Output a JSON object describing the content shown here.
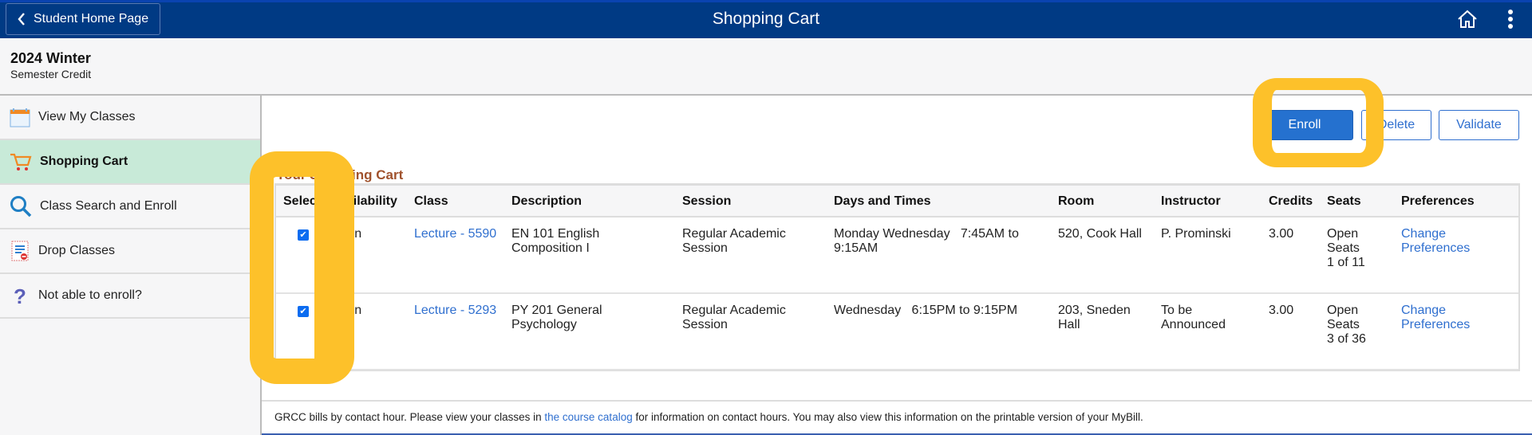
{
  "header": {
    "back_label": "Student Home Page",
    "title": "Shopping Cart",
    "icons": [
      "chevron-left-icon",
      "home-icon",
      "more-vertical-icon"
    ],
    "color": "#003a84"
  },
  "term": {
    "name": "2024 Winter",
    "career": "Semester Credit"
  },
  "sidebar": {
    "items": [
      {
        "label": "View My Classes",
        "icon": "calendar-icon"
      },
      {
        "label": "Shopping Cart",
        "icon": "cart-icon",
        "active": true
      },
      {
        "label": "Class Search and Enroll",
        "icon": "search-icon"
      },
      {
        "label": "Drop Classes",
        "icon": "drop-classes-icon"
      },
      {
        "label": "Not able to enroll?",
        "icon": "question-icon"
      }
    ],
    "active_color": "#c8ead8"
  },
  "actions": {
    "enroll": "Enroll",
    "delete": "Delete",
    "validate": "Validate"
  },
  "cart": {
    "title": "Your Shopping Cart",
    "columns": [
      "Select",
      "Availability",
      "Class",
      "Description",
      "Session",
      "Days and Times",
      "Room",
      "Instructor",
      "Credits",
      "Seats",
      "Preferences"
    ],
    "rows": [
      {
        "selected": true,
        "availability": "Open",
        "class": "Lecture - 5590",
        "description": "EN 101 English Composition I",
        "session": "Regular Academic Session",
        "days_times": "Monday Wednesday   7:45AM to 9:15AM",
        "room": "520, Cook Hall",
        "instructor": "P. Prominski",
        "credits": "3.00",
        "seats": "Open Seats 1 of 11",
        "preferences": "Change Preferences"
      },
      {
        "selected": true,
        "availability": "Open",
        "class": "Lecture - 5293",
        "description": "PY 201 General Psychology",
        "session": "Regular Academic Session",
        "days_times": "Wednesday   6:15PM to 9:15PM",
        "room": "203, Sneden Hall",
        "instructor": "To be Announced",
        "credits": "3.00",
        "seats": "Open Seats 3 of 36",
        "preferences": "Change Preferences"
      }
    ]
  },
  "footer": {
    "text_before": "GRCC bills by contact hour. Please view your classes in ",
    "link": "the course catalog",
    "text_after": " for information on contact hours. You may also view this information on the printable version of your MyBill."
  },
  "highlight_color": "#fdc12a"
}
